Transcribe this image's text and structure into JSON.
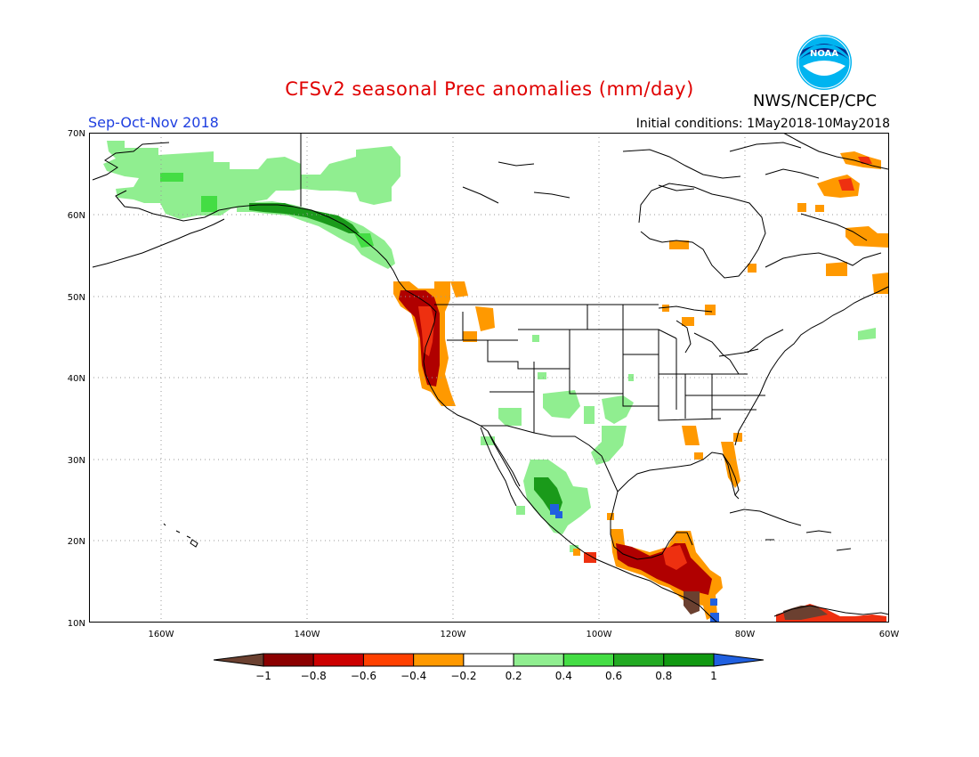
{
  "header": {
    "title": "CFSv2 seasonal Prec anomalies (mm/day)",
    "season": "Sep-Oct-Nov 2018",
    "initial_conditions": "Initial conditions: 1May2018-10May2018",
    "agency": "NWS/NCEP/CPC",
    "logo_text": "NOAA"
  },
  "map": {
    "projection": "lat-lon",
    "lon_range": [
      -172,
      -60
    ],
    "lat_range": [
      10,
      70
    ],
    "gridlines": "dotted",
    "lat_labels": [
      "70N",
      "60N",
      "50N",
      "40N",
      "30N",
      "20N",
      "10N"
    ],
    "lon_labels": [
      "160W",
      "140W",
      "120W",
      "100W",
      "80W",
      "60W"
    ]
  },
  "colorbar": {
    "tick_labels": [
      "-1",
      "-0.8",
      "-0.6",
      "-0.4",
      "-0.2",
      "0.2",
      "0.4",
      "0.6",
      "0.8",
      "1"
    ],
    "colors": [
      "#8b0000",
      "#cc0000",
      "#ff4000",
      "#ff9900",
      "#ffffff",
      "#90ee90",
      "#44dd44",
      "#22aa22",
      "#119911"
    ],
    "under_color": "#6b4030",
    "over_color": "#2060e0"
  },
  "colors": {
    "title": "#e00000",
    "season": "#2040e0",
    "dry_strong": "#b00000",
    "dry_mid": "#ee3010",
    "dry_light": "#ff9900",
    "wet_light": "#90ee90",
    "wet_mid": "#44dd44",
    "wet_strong": "#1a9a1a",
    "very_dry": "#6b4030",
    "very_wet": "#2060e0"
  }
}
